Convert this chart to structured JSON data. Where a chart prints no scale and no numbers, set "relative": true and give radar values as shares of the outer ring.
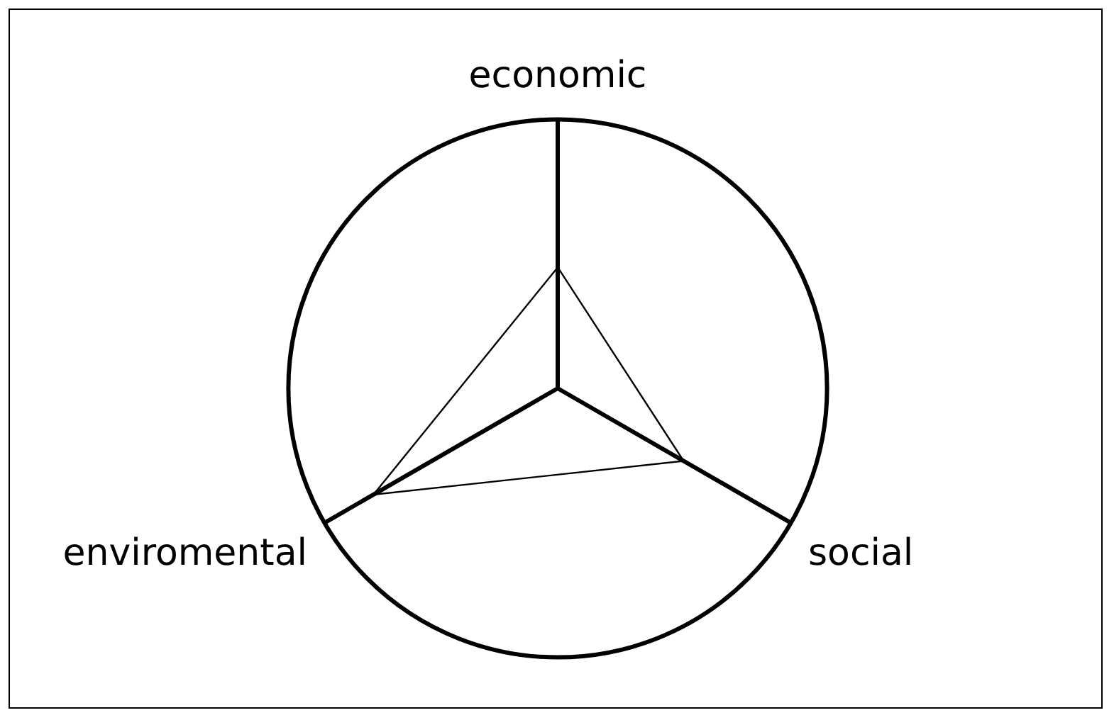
{
  "chart_data": {
    "type": "radar",
    "categories": [
      "economic",
      "social",
      "enviromental"
    ],
    "relative": true,
    "legend": false,
    "series": [
      {
        "color": "#000000",
        "values": [
          0.45,
          0.54,
          0.79
        ]
      }
    ]
  }
}
